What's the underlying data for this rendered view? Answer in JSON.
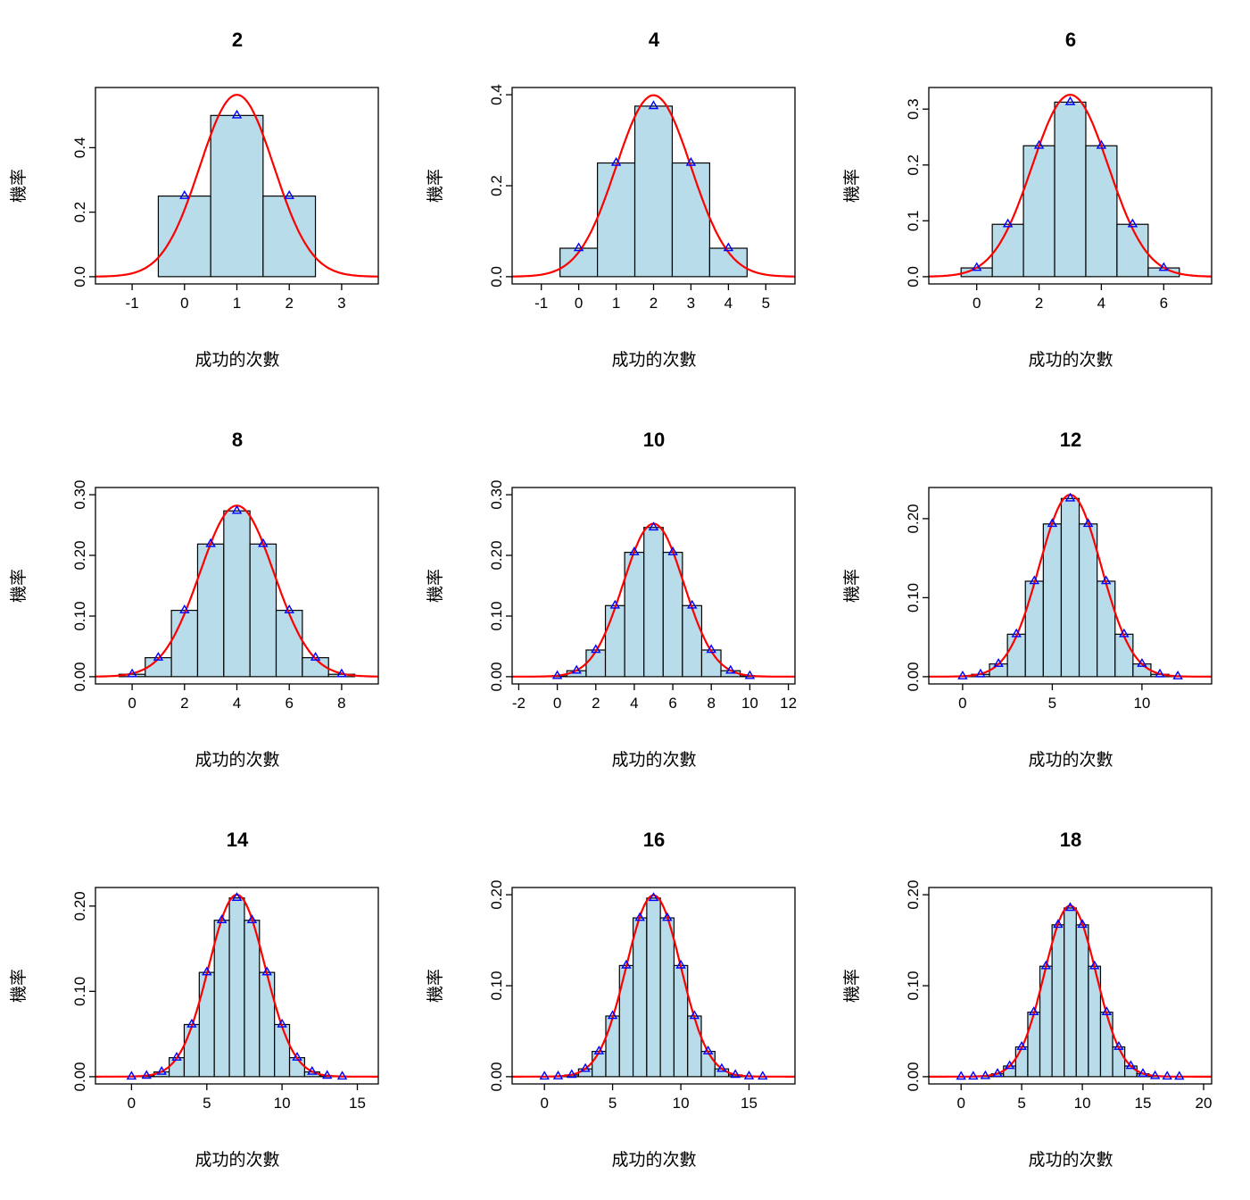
{
  "figure": {
    "background": "#ffffff",
    "rows": 3,
    "cols": 3,
    "description_xlabel": "成功的次數",
    "description_ylabel": "機率"
  },
  "chart_data": [
    {
      "type": "bar",
      "title": "2",
      "xlabel": "成功的次數",
      "ylabel": "機率",
      "n": 2,
      "p": 0.5,
      "x": [
        0,
        1,
        2
      ],
      "values": [
        0.25,
        0.5,
        0.25
      ],
      "x_ticks": [
        -1,
        0,
        1,
        2,
        3
      ],
      "x_tick_labels": [
        "-1",
        "0",
        "1",
        "2",
        "3"
      ],
      "y_ticks": [
        0.0,
        0.2,
        0.4
      ],
      "y_tick_labels": [
        "0.0",
        "0.2",
        "0.4"
      ],
      "xlim": [
        -1.5,
        3.5
      ],
      "ylim": [
        0,
        0.5642
      ],
      "normal_mean": 1,
      "normal_sd": 0.70711,
      "colors": {
        "bar_fill": "#b8dce9",
        "bar_stroke": "#000000",
        "curve": "#ff0000",
        "points": "#0000ff"
      }
    },
    {
      "type": "bar",
      "title": "4",
      "xlabel": "成功的次數",
      "ylabel": "機率",
      "n": 4,
      "p": 0.5,
      "x": [
        0,
        1,
        2,
        3,
        4
      ],
      "values": [
        0.0625,
        0.25,
        0.375,
        0.25,
        0.0625
      ],
      "x_ticks": [
        -1,
        0,
        1,
        2,
        3,
        4,
        5
      ],
      "x_tick_labels": [
        "-1",
        "0",
        "1",
        "2",
        "3",
        "4",
        "5"
      ],
      "y_ticks": [
        0.0,
        0.2,
        0.4
      ],
      "y_tick_labels": [
        "0.0",
        "0.2",
        "0.4"
      ],
      "xlim": [
        -1.5,
        5.5
      ],
      "ylim": [
        0,
        0.4
      ],
      "normal_mean": 2,
      "normal_sd": 1,
      "colors": {
        "bar_fill": "#b8dce9",
        "bar_stroke": "#000000",
        "curve": "#ff0000",
        "points": "#0000ff"
      }
    },
    {
      "type": "bar",
      "title": "6",
      "xlabel": "成功的次數",
      "ylabel": "機率",
      "n": 6,
      "p": 0.5,
      "x": [
        0,
        1,
        2,
        3,
        4,
        5,
        6
      ],
      "values": [
        0.01563,
        0.09375,
        0.23438,
        0.3125,
        0.23438,
        0.09375,
        0.01563
      ],
      "x_ticks": [
        0,
        2,
        4,
        6
      ],
      "x_tick_labels": [
        "0",
        "2",
        "4",
        "6"
      ],
      "y_ticks": [
        0.0,
        0.1,
        0.2,
        0.3
      ],
      "y_tick_labels": [
        "0.0",
        "0.1",
        "0.2",
        "0.3"
      ],
      "xlim": [
        -1.2,
        7.2
      ],
      "ylim": [
        0,
        0.3257
      ],
      "normal_mean": 3,
      "normal_sd": 1.22474,
      "colors": {
        "bar_fill": "#b8dce9",
        "bar_stroke": "#000000",
        "curve": "#ff0000",
        "points": "#0000ff"
      }
    },
    {
      "type": "bar",
      "title": "8",
      "xlabel": "成功的次數",
      "ylabel": "機率",
      "n": 8,
      "p": 0.5,
      "x": [
        0,
        1,
        2,
        3,
        4,
        5,
        6,
        7,
        8
      ],
      "values": [
        0.00391,
        0.03125,
        0.10938,
        0.21875,
        0.27344,
        0.21875,
        0.10938,
        0.03125,
        0.00391
      ],
      "x_ticks": [
        0,
        2,
        4,
        6,
        8
      ],
      "x_tick_labels": [
        "0",
        "2",
        "4",
        "6",
        "8"
      ],
      "y_ticks": [
        0.0,
        0.1,
        0.2,
        0.3
      ],
      "y_tick_labels": [
        "0.00",
        "0.10",
        "0.20",
        "0.30"
      ],
      "xlim": [
        -1.0,
        9.0
      ],
      "ylim": [
        0,
        0.3
      ],
      "normal_mean": 4,
      "normal_sd": 1.41421,
      "colors": {
        "bar_fill": "#b8dce9",
        "bar_stroke": "#000000",
        "curve": "#ff0000",
        "points": "#0000ff"
      }
    },
    {
      "type": "bar",
      "title": "10",
      "xlabel": "成功的次數",
      "ylabel": "機率",
      "n": 10,
      "p": 0.5,
      "x": [
        0,
        1,
        2,
        3,
        4,
        5,
        6,
        7,
        8,
        9,
        10
      ],
      "values": [
        0.00098,
        0.00977,
        0.04395,
        0.11719,
        0.20508,
        0.24609,
        0.20508,
        0.11719,
        0.04395,
        0.00977,
        0.00098
      ],
      "x_ticks": [
        -2,
        0,
        2,
        4,
        6,
        8,
        10,
        12
      ],
      "x_tick_labels": [
        "-2",
        "0",
        "2",
        "4",
        "6",
        "8",
        "10",
        "12"
      ],
      "y_ticks": [
        0.0,
        0.1,
        0.2,
        0.3
      ],
      "y_tick_labels": [
        "0.00",
        "0.10",
        "0.20",
        "0.30"
      ],
      "xlim": [
        -1.8,
        11.8
      ],
      "ylim": [
        0,
        0.3
      ],
      "normal_mean": 5,
      "normal_sd": 1.58114,
      "colors": {
        "bar_fill": "#b8dce9",
        "bar_stroke": "#000000",
        "curve": "#ff0000",
        "points": "#0000ff"
      }
    },
    {
      "type": "bar",
      "title": "12",
      "xlabel": "成功的次數",
      "ylabel": "機率",
      "n": 12,
      "p": 0.5,
      "x": [
        0,
        1,
        2,
        3,
        4,
        5,
        6,
        7,
        8,
        9,
        10,
        11,
        12
      ],
      "values": [
        0.00024,
        0.00293,
        0.01611,
        0.05371,
        0.12085,
        0.19336,
        0.22559,
        0.19336,
        0.12085,
        0.05371,
        0.01611,
        0.00293,
        0.00024
      ],
      "x_ticks": [
        0,
        5,
        10
      ],
      "x_tick_labels": [
        "0",
        "5",
        "10"
      ],
      "y_ticks": [
        0.0,
        0.1,
        0.2
      ],
      "y_tick_labels": [
        "0.00",
        "0.10",
        "0.20"
      ],
      "xlim": [
        -1.3,
        13.3
      ],
      "ylim": [
        0,
        0.2303
      ],
      "normal_mean": 6,
      "normal_sd": 1.73205,
      "colors": {
        "bar_fill": "#b8dce9",
        "bar_stroke": "#000000",
        "curve": "#ff0000",
        "points": "#0000ff"
      }
    },
    {
      "type": "bar",
      "title": "14",
      "xlabel": "成功的次數",
      "ylabel": "機率",
      "n": 14,
      "p": 0.5,
      "x": [
        0,
        1,
        2,
        3,
        4,
        5,
        6,
        7,
        8,
        9,
        10,
        11,
        12,
        13,
        14
      ],
      "values": [
        6e-05,
        0.00085,
        0.00555,
        0.02222,
        0.0611,
        0.12219,
        0.18329,
        0.20947,
        0.18329,
        0.12219,
        0.0611,
        0.02222,
        0.00555,
        0.00085,
        6e-05
      ],
      "x_ticks": [
        0,
        5,
        10,
        15
      ],
      "x_tick_labels": [
        "0",
        "5",
        "10",
        "15"
      ],
      "y_ticks": [
        0.0,
        0.1,
        0.2
      ],
      "y_tick_labels": [
        "0.00",
        "0.10",
        "0.20"
      ],
      "xlim": [
        -1.7,
        15.7
      ],
      "ylim": [
        0,
        0.2132
      ],
      "normal_mean": 7,
      "normal_sd": 1.87083,
      "colors": {
        "bar_fill": "#b8dce9",
        "bar_stroke": "#000000",
        "curve": "#ff0000",
        "points": "#0000ff"
      }
    },
    {
      "type": "bar",
      "title": "16",
      "xlabel": "成功的次數",
      "ylabel": "機率",
      "n": 16,
      "p": 0.5,
      "x": [
        0,
        1,
        2,
        3,
        4,
        5,
        6,
        7,
        8,
        9,
        10,
        11,
        12,
        13,
        14,
        15,
        16
      ],
      "values": [
        2e-05,
        0.00024,
        0.00183,
        0.00854,
        0.02777,
        0.06665,
        0.12219,
        0.17456,
        0.19638,
        0.17456,
        0.12219,
        0.06665,
        0.02777,
        0.00854,
        0.00183,
        0.00024,
        2e-05
      ],
      "x_ticks": [
        0,
        5,
        10,
        15
      ],
      "x_tick_labels": [
        "0",
        "5",
        "10",
        "15"
      ],
      "y_ticks": [
        0.0,
        0.1,
        0.2
      ],
      "y_tick_labels": [
        "0.00",
        "0.10",
        "0.20"
      ],
      "xlim": [
        -1.6,
        17.6
      ],
      "ylim": [
        0,
        0.2
      ],
      "normal_mean": 8,
      "normal_sd": 2,
      "colors": {
        "bar_fill": "#b8dce9",
        "bar_stroke": "#000000",
        "curve": "#ff0000",
        "points": "#0000ff"
      }
    },
    {
      "type": "bar",
      "title": "18",
      "xlabel": "成功的次數",
      "ylabel": "機率",
      "n": 18,
      "p": 0.5,
      "x": [
        0,
        1,
        2,
        3,
        4,
        5,
        6,
        7,
        8,
        9,
        10,
        11,
        12,
        13,
        14,
        15,
        16,
        17,
        18
      ],
      "values": [
        0.0,
        7e-05,
        0.00058,
        0.00311,
        0.01167,
        0.03268,
        0.07082,
        0.1214,
        0.16692,
        0.18547,
        0.16692,
        0.1214,
        0.07082,
        0.03268,
        0.01167,
        0.00311,
        0.00058,
        7e-05,
        0.0
      ],
      "x_ticks": [
        0,
        5,
        10,
        15,
        20
      ],
      "x_tick_labels": [
        "0",
        "5",
        "10",
        "15",
        "20"
      ],
      "y_ticks": [
        0.0,
        0.1,
        0.2
      ],
      "y_tick_labels": [
        "0.00",
        "0.10",
        "0.20"
      ],
      "xlim": [
        -1.8,
        19.8
      ],
      "ylim": [
        0,
        0.2
      ],
      "normal_mean": 9,
      "normal_sd": 2.12132,
      "colors": {
        "bar_fill": "#b8dce9",
        "bar_stroke": "#000000",
        "curve": "#ff0000",
        "points": "#0000ff"
      }
    }
  ]
}
